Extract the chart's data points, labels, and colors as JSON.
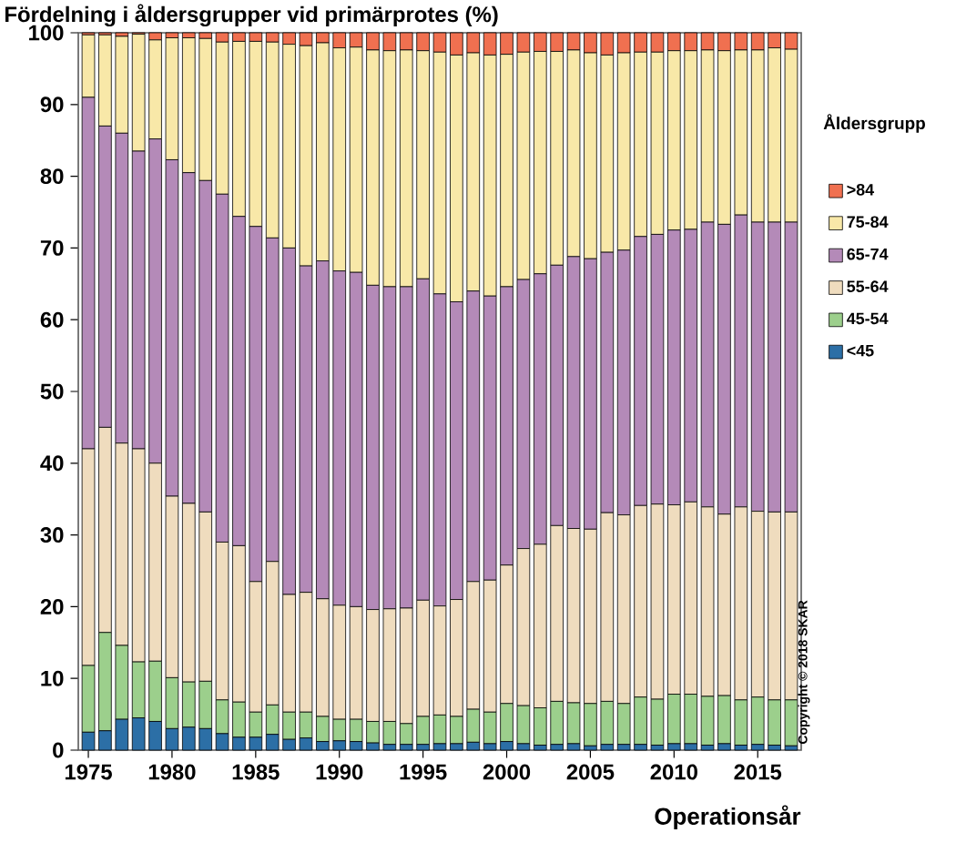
{
  "chart_data": {
    "type": "bar",
    "stacked": true,
    "title": "Fördelning i åldersgrupper vid primärprotes (%)",
    "xlabel": "Operationsår",
    "legend_title": "Åldersgrupp",
    "annotations": [
      "Copyright © 2018 SKAR"
    ],
    "x": [
      1975,
      1976,
      1977,
      1978,
      1979,
      1980,
      1981,
      1982,
      1983,
      1984,
      1985,
      1986,
      1987,
      1988,
      1989,
      1990,
      1991,
      1992,
      1993,
      1994,
      1995,
      1996,
      1997,
      1998,
      1999,
      2000,
      2001,
      2002,
      2003,
      2004,
      2005,
      2006,
      2007,
      2008,
      2009,
      2010,
      2011,
      2012,
      2013,
      2014,
      2015,
      2016,
      2017
    ],
    "xlim": [
      1974.4,
      2017.6
    ],
    "xticks": [
      1975,
      1980,
      1985,
      1990,
      1995,
      2000,
      2005,
      2010,
      2015
    ],
    "ylim": [
      0,
      100
    ],
    "yticks": [
      0,
      10,
      20,
      30,
      40,
      50,
      60,
      70,
      80,
      90,
      100
    ],
    "grid": false,
    "legend": "right",
    "series": [
      {
        "name": "<45",
        "color": "#2c6fa6",
        "values": [
          2.5,
          2.7,
          4.3,
          4.5,
          4.0,
          3.0,
          3.2,
          3.0,
          2.3,
          1.8,
          1.8,
          2.2,
          1.5,
          1.7,
          1.2,
          1.3,
          1.2,
          1.0,
          0.8,
          0.8,
          0.8,
          0.9,
          0.9,
          1.1,
          0.9,
          1.2,
          0.9,
          0.7,
          0.8,
          0.9,
          0.6,
          0.8,
          0.8,
          0.8,
          0.7,
          0.9,
          0.9,
          0.7,
          0.9,
          0.7,
          0.8,
          0.7,
          0.6
        ]
      },
      {
        "name": "45-54",
        "color": "#9ccf8c",
        "values": [
          9.3,
          13.7,
          10.3,
          7.8,
          8.4,
          7.1,
          6.3,
          6.6,
          4.7,
          4.9,
          3.5,
          4.1,
          3.8,
          3.6,
          3.5,
          3.0,
          3.1,
          3.0,
          3.2,
          2.9,
          3.9,
          4.0,
          3.8,
          4.6,
          4.4,
          5.3,
          5.3,
          5.2,
          6.0,
          5.7,
          5.9,
          6.0,
          5.7,
          6.6,
          6.4,
          6.9,
          6.9,
          6.8,
          6.7,
          6.3,
          6.6,
          6.3,
          6.4
        ]
      },
      {
        "name": "55-64",
        "color": "#efdcbe",
        "values": [
          30.2,
          28.6,
          28.2,
          29.7,
          27.6,
          25.3,
          24.9,
          23.6,
          22.0,
          21.8,
          18.2,
          20.0,
          16.4,
          16.7,
          16.4,
          15.9,
          15.7,
          15.6,
          15.7,
          16.1,
          16.2,
          15.2,
          16.3,
          17.8,
          18.4,
          19.3,
          21.9,
          22.8,
          24.5,
          24.3,
          24.3,
          26.3,
          26.3,
          26.7,
          27.2,
          26.4,
          26.8,
          26.4,
          25.3,
          26.9,
          25.9,
          26.2,
          26.2
        ]
      },
      {
        "name": "65-74",
        "color": "#b48ab8",
        "values": [
          49.0,
          42.0,
          43.2,
          41.5,
          45.2,
          46.9,
          46.1,
          46.2,
          48.5,
          45.9,
          49.5,
          45.1,
          48.3,
          45.5,
          47.1,
          46.6,
          46.6,
          45.2,
          44.9,
          44.8,
          44.8,
          43.5,
          41.5,
          40.5,
          39.6,
          38.8,
          37.5,
          37.7,
          36.3,
          37.9,
          37.7,
          36.3,
          36.9,
          37.5,
          37.6,
          38.3,
          38.0,
          39.7,
          40.4,
          40.7,
          40.3,
          40.4,
          40.4
        ]
      },
      {
        "name": "75-84",
        "color": "#f8e8a8",
        "values": [
          8.7,
          12.7,
          13.5,
          16.3,
          13.8,
          17.0,
          18.8,
          19.8,
          21.2,
          24.4,
          25.8,
          27.3,
          28.4,
          30.7,
          30.4,
          31.1,
          31.4,
          32.8,
          32.9,
          33.0,
          31.8,
          33.7,
          34.4,
          33.2,
          33.6,
          32.4,
          31.7,
          31.0,
          29.8,
          28.8,
          28.7,
          27.5,
          27.5,
          25.7,
          25.4,
          25.0,
          24.9,
          24.0,
          24.2,
          23.0,
          24.0,
          24.3,
          24.1
        ]
      },
      {
        "name": ">84",
        "color": "#f07050",
        "values": [
          0.3,
          0.3,
          0.5,
          0.2,
          1.0,
          0.7,
          0.7,
          0.8,
          1.3,
          1.2,
          1.2,
          1.3,
          1.6,
          1.8,
          1.4,
          2.1,
          2.0,
          2.4,
          2.5,
          2.4,
          2.5,
          2.7,
          3.1,
          2.8,
          3.1,
          3.0,
          2.7,
          2.6,
          2.6,
          2.4,
          2.8,
          3.1,
          2.8,
          2.7,
          2.7,
          2.5,
          2.5,
          2.4,
          2.5,
          2.4,
          2.4,
          2.1,
          2.3
        ]
      }
    ]
  }
}
